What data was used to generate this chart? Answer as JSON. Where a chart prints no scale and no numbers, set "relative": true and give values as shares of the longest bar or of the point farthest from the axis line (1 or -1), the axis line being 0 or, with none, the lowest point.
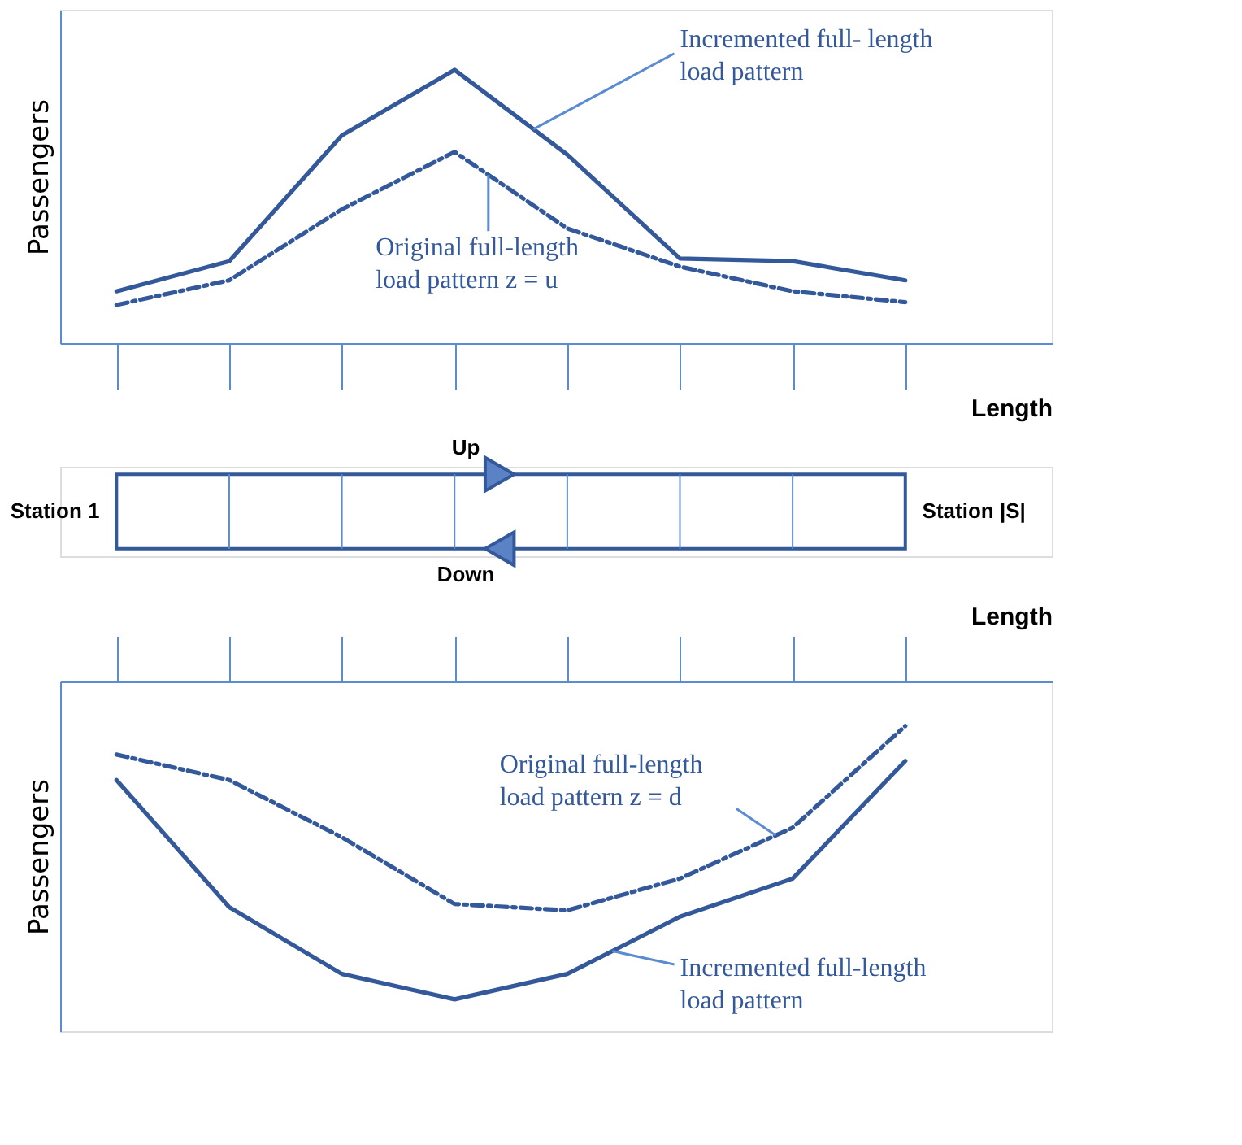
{
  "chart_data": [
    {
      "type": "line",
      "relative": true,
      "categories": [
        null,
        null,
        null,
        null,
        null,
        null,
        null,
        null
      ],
      "xlabel": "Length",
      "ylabel": "Passengers",
      "series": [
        {
          "name": "Incremented full- length load pattern",
          "color": "#34599b",
          "line_style": "solid",
          "values": [
            0.19,
            0.3,
            0.76,
            1.0,
            0.69,
            0.31,
            0.3,
            0.23
          ]
        },
        {
          "name": "Original full-length load pattern z = u",
          "color": "#34599b",
          "line_style": "dashed",
          "values": [
            0.14,
            0.23,
            0.49,
            0.7,
            0.42,
            0.28,
            0.19,
            0.15
          ]
        }
      ]
    },
    {
      "type": "other",
      "annotations": [
        "Station 1",
        "Up",
        "Down",
        "Station |S|"
      ]
    },
    {
      "type": "line",
      "relative": true,
      "categories": [
        null,
        null,
        null,
        null,
        null,
        null,
        null,
        null
      ],
      "xlabel": "Length",
      "ylabel": "Passengers",
      "series": [
        {
          "name": "Incremented full-length load pattern",
          "color": "#34599b",
          "line_style": "solid",
          "values": [
            -0.31,
            -0.71,
            -0.92,
            -1.0,
            -0.92,
            -0.74,
            -0.62,
            -0.25
          ]
        },
        {
          "name": "Original full-length load pattern z = d",
          "color": "#34599b",
          "line_style": "dashed",
          "values": [
            -0.23,
            -0.31,
            -0.49,
            -0.7,
            -0.72,
            -0.62,
            -0.46,
            -0.14
          ]
        }
      ]
    }
  ]
}
